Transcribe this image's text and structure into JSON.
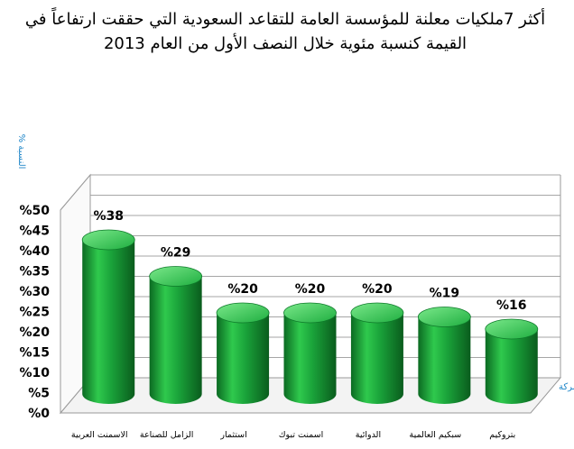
{
  "chart_data": {
    "type": "bar",
    "title": "أكثر 7ملكيات معلنة للمؤسسة العامة للتقاعد السعودية التي حققت ارتفاعاً في القيمة كنسبة مئوية خلال النصف الأول من العام 2013",
    "xlabel": "الشركة",
    "ylabel": "النسبة %",
    "categories": [
      "الاسمنت العربية",
      "الزامل للصناعة",
      "استثمار",
      "اسمنت تبوك",
      "الدوائية",
      "سبكيم العالمية",
      "بتروكيم"
    ],
    "values": [
      38,
      29,
      20,
      20,
      20,
      19,
      16
    ],
    "data_labels": [
      "%38",
      "%29",
      "%20",
      "%20",
      "%20",
      "%19",
      "%16"
    ],
    "ylim": [
      0,
      50
    ],
    "yticks": [
      "%0",
      "%5",
      "%10",
      "%15",
      "%20",
      "%25",
      "%30",
      "%35",
      "%40",
      "%45",
      "%50"
    ],
    "grid": true,
    "colors": {
      "bar": "#1aa33a",
      "bar_dark": "#0b6a22",
      "bar_light": "#6fe07f",
      "axis_title": "#1f86c8",
      "grid": "#a6a6a6"
    }
  }
}
